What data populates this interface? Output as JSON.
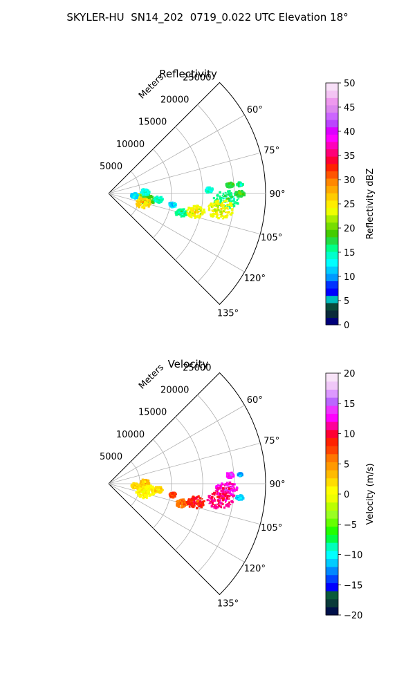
{
  "figure_title": "SKYLER-HU  SN14_202  0719_0.022 UTC Elevation 18°",
  "chart_data": [
    {
      "type": "polar-sector",
      "title": "Reflectivity",
      "radial_label": "Meters",
      "radial_ticks": [
        "5000",
        "10000",
        "15000",
        "20000",
        "25000"
      ],
      "radial_values": [
        5000,
        10000,
        15000,
        20000,
        25000
      ],
      "rlim": [
        0,
        25000
      ],
      "theta_range_deg": [
        45,
        135
      ],
      "theta_tick_labels": [
        "60°",
        "75°",
        "90°",
        "105°",
        "120°",
        "135°"
      ],
      "theta_values": [
        60,
        75,
        90,
        105,
        120,
        135
      ],
      "colorbar": {
        "label": "Reflectivity dBZ",
        "range": [
          0,
          50
        ],
        "ticks": [
          "0",
          "5",
          "10",
          "15",
          "20",
          "25",
          "30",
          "35",
          "40",
          "45",
          "50"
        ],
        "colors": [
          "#00007a",
          "#0a2a3a",
          "#0a4a3a",
          "#00bfbf",
          "#0000ff",
          "#0033ff",
          "#0099ff",
          "#00ccff",
          "#00ffff",
          "#00ffcc",
          "#00ff88",
          "#22dd44",
          "#44cc00",
          "#77dd00",
          "#aaee00",
          "#eeff00",
          "#ffee00",
          "#ffcc00",
          "#ffaa00",
          "#ff8800",
          "#ff5500",
          "#ff2200",
          "#ff0033",
          "#ff0077",
          "#ff00bb",
          "#ff00ff",
          "#dd00ff",
          "#bb44ff",
          "#cc66ff",
          "#dd88ee",
          "#ee99ee",
          "#f4c4f4",
          "#f8e0f8"
        ]
      },
      "echo_regions": [
        {
          "r": 5600,
          "theta": 97,
          "value": 22,
          "size": 900
        },
        {
          "r": 6400,
          "theta": 100,
          "value": 18,
          "size": 1000
        },
        {
          "r": 5800,
          "theta": 105,
          "value": 26,
          "size": 1000
        },
        {
          "r": 4200,
          "theta": 95,
          "value": 12,
          "size": 500
        },
        {
          "r": 5800,
          "theta": 88,
          "value": 14,
          "size": 600
        },
        {
          "r": 8000,
          "theta": 97,
          "value": 15,
          "size": 600
        },
        {
          "r": 10400,
          "theta": 100,
          "value": 12,
          "size": 500
        },
        {
          "r": 12000,
          "theta": 105,
          "value": 16,
          "size": 800
        },
        {
          "r": 14200,
          "theta": 102,
          "value": 24,
          "size": 1200
        },
        {
          "r": 16000,
          "theta": 88,
          "value": 14,
          "size": 500
        },
        {
          "r": 18800,
          "theta": 93,
          "value": 16,
          "size": 1700
        },
        {
          "r": 18000,
          "theta": 98,
          "value": 24,
          "size": 1800
        },
        {
          "r": 21000,
          "theta": 90,
          "value": 18,
          "size": 600
        },
        {
          "r": 19400,
          "theta": 86,
          "value": 18,
          "size": 500
        },
        {
          "r": 21000,
          "theta": 86,
          "value": 16,
          "size": 400
        }
      ]
    },
    {
      "type": "polar-sector",
      "title": "Velocity",
      "radial_label": "Meters",
      "radial_ticks": [
        "5000",
        "10000",
        "15000",
        "20000",
        "25000"
      ],
      "radial_values": [
        5000,
        10000,
        15000,
        20000,
        25000
      ],
      "rlim": [
        0,
        25000
      ],
      "theta_range_deg": [
        45,
        135
      ],
      "theta_tick_labels": [
        "60°",
        "75°",
        "90°",
        "105°",
        "120°",
        "135°"
      ],
      "theta_values": [
        60,
        75,
        90,
        105,
        120,
        135
      ],
      "colorbar": {
        "label": "Velocity (m/s)",
        "range": [
          -20,
          20
        ],
        "ticks": [
          "−20",
          "−15",
          "−10",
          "−5",
          "0",
          "5",
          "10",
          "15",
          "20"
        ],
        "colors": [
          "#00104a",
          "#0a3a3a",
          "#0a5a3a",
          "#0000ff",
          "#0044ff",
          "#0088ff",
          "#00ccff",
          "#00ffff",
          "#00ffbb",
          "#00ff44",
          "#22ff00",
          "#66ff00",
          "#99ff22",
          "#bbff00",
          "#eeff00",
          "#ffff00",
          "#ffdd00",
          "#ffbb00",
          "#ff9900",
          "#ff7700",
          "#ff4400",
          "#ff2200",
          "#ff0033",
          "#ff0099",
          "#ff00ff",
          "#ee33ff",
          "#bb66ff",
          "#dd99ff",
          "#f0c8f8",
          "#f8e4f8"
        ]
      },
      "echo_regions": [
        {
          "r": 5600,
          "theta": 97,
          "value": 2,
          "size": 900
        },
        {
          "r": 6400,
          "theta": 100,
          "value": 1,
          "size": 1000
        },
        {
          "r": 5800,
          "theta": 105,
          "value": 1,
          "size": 1000
        },
        {
          "r": 4200,
          "theta": 95,
          "value": 2,
          "size": 500
        },
        {
          "r": 5800,
          "theta": 88,
          "value": 3,
          "size": 600
        },
        {
          "r": 8000,
          "theta": 97,
          "value": 2,
          "size": 600
        },
        {
          "r": 10400,
          "theta": 100,
          "value": 8,
          "size": 500
        },
        {
          "r": 12000,
          "theta": 105,
          "value": 6,
          "size": 800
        },
        {
          "r": 14200,
          "theta": 102,
          "value": 9,
          "size": 1200
        },
        {
          "r": 18800,
          "theta": 93,
          "value": 12,
          "size": 1500
        },
        {
          "r": 18000,
          "theta": 98,
          "value": 11,
          "size": 1800
        },
        {
          "r": 21000,
          "theta": 96,
          "value": -11,
          "size": 500
        },
        {
          "r": 19400,
          "theta": 86,
          "value": 13,
          "size": 500
        },
        {
          "r": 21000,
          "theta": 86,
          "value": -12,
          "size": 300
        }
      ]
    }
  ]
}
